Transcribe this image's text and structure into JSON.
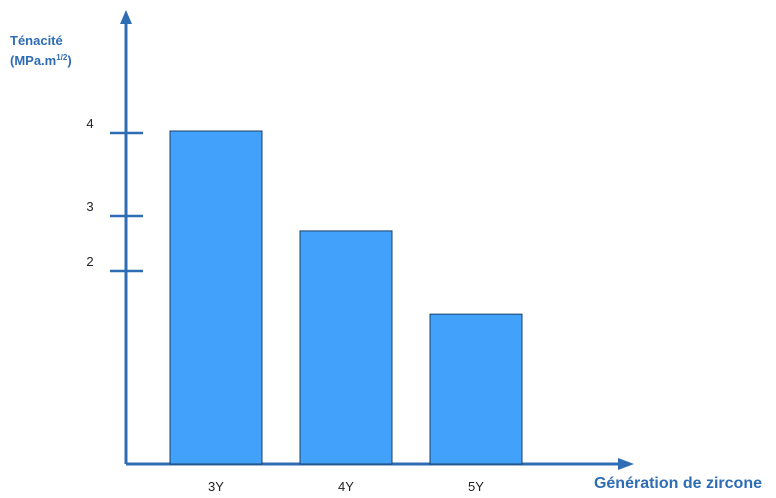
{
  "chart_data": {
    "type": "bar",
    "categories": [
      "3Y",
      "4Y",
      "5Y"
    ],
    "values": [
      4.0,
      2.8,
      1.8
    ],
    "ylabel_line1": "Ténacité",
    "ylabel_line2_base": "(MPa.m",
    "ylabel_line2_exp": "1/2",
    "ylabel_line2_end": ")",
    "xlabel": "Génération de zircone",
    "yticks": [
      2,
      3,
      4
    ],
    "ylim": [
      0,
      5
    ],
    "grid": false,
    "colors": {
      "bar": "#42a1fb",
      "bar_border": "#1c3f66",
      "axis": "#2e6db4"
    }
  }
}
